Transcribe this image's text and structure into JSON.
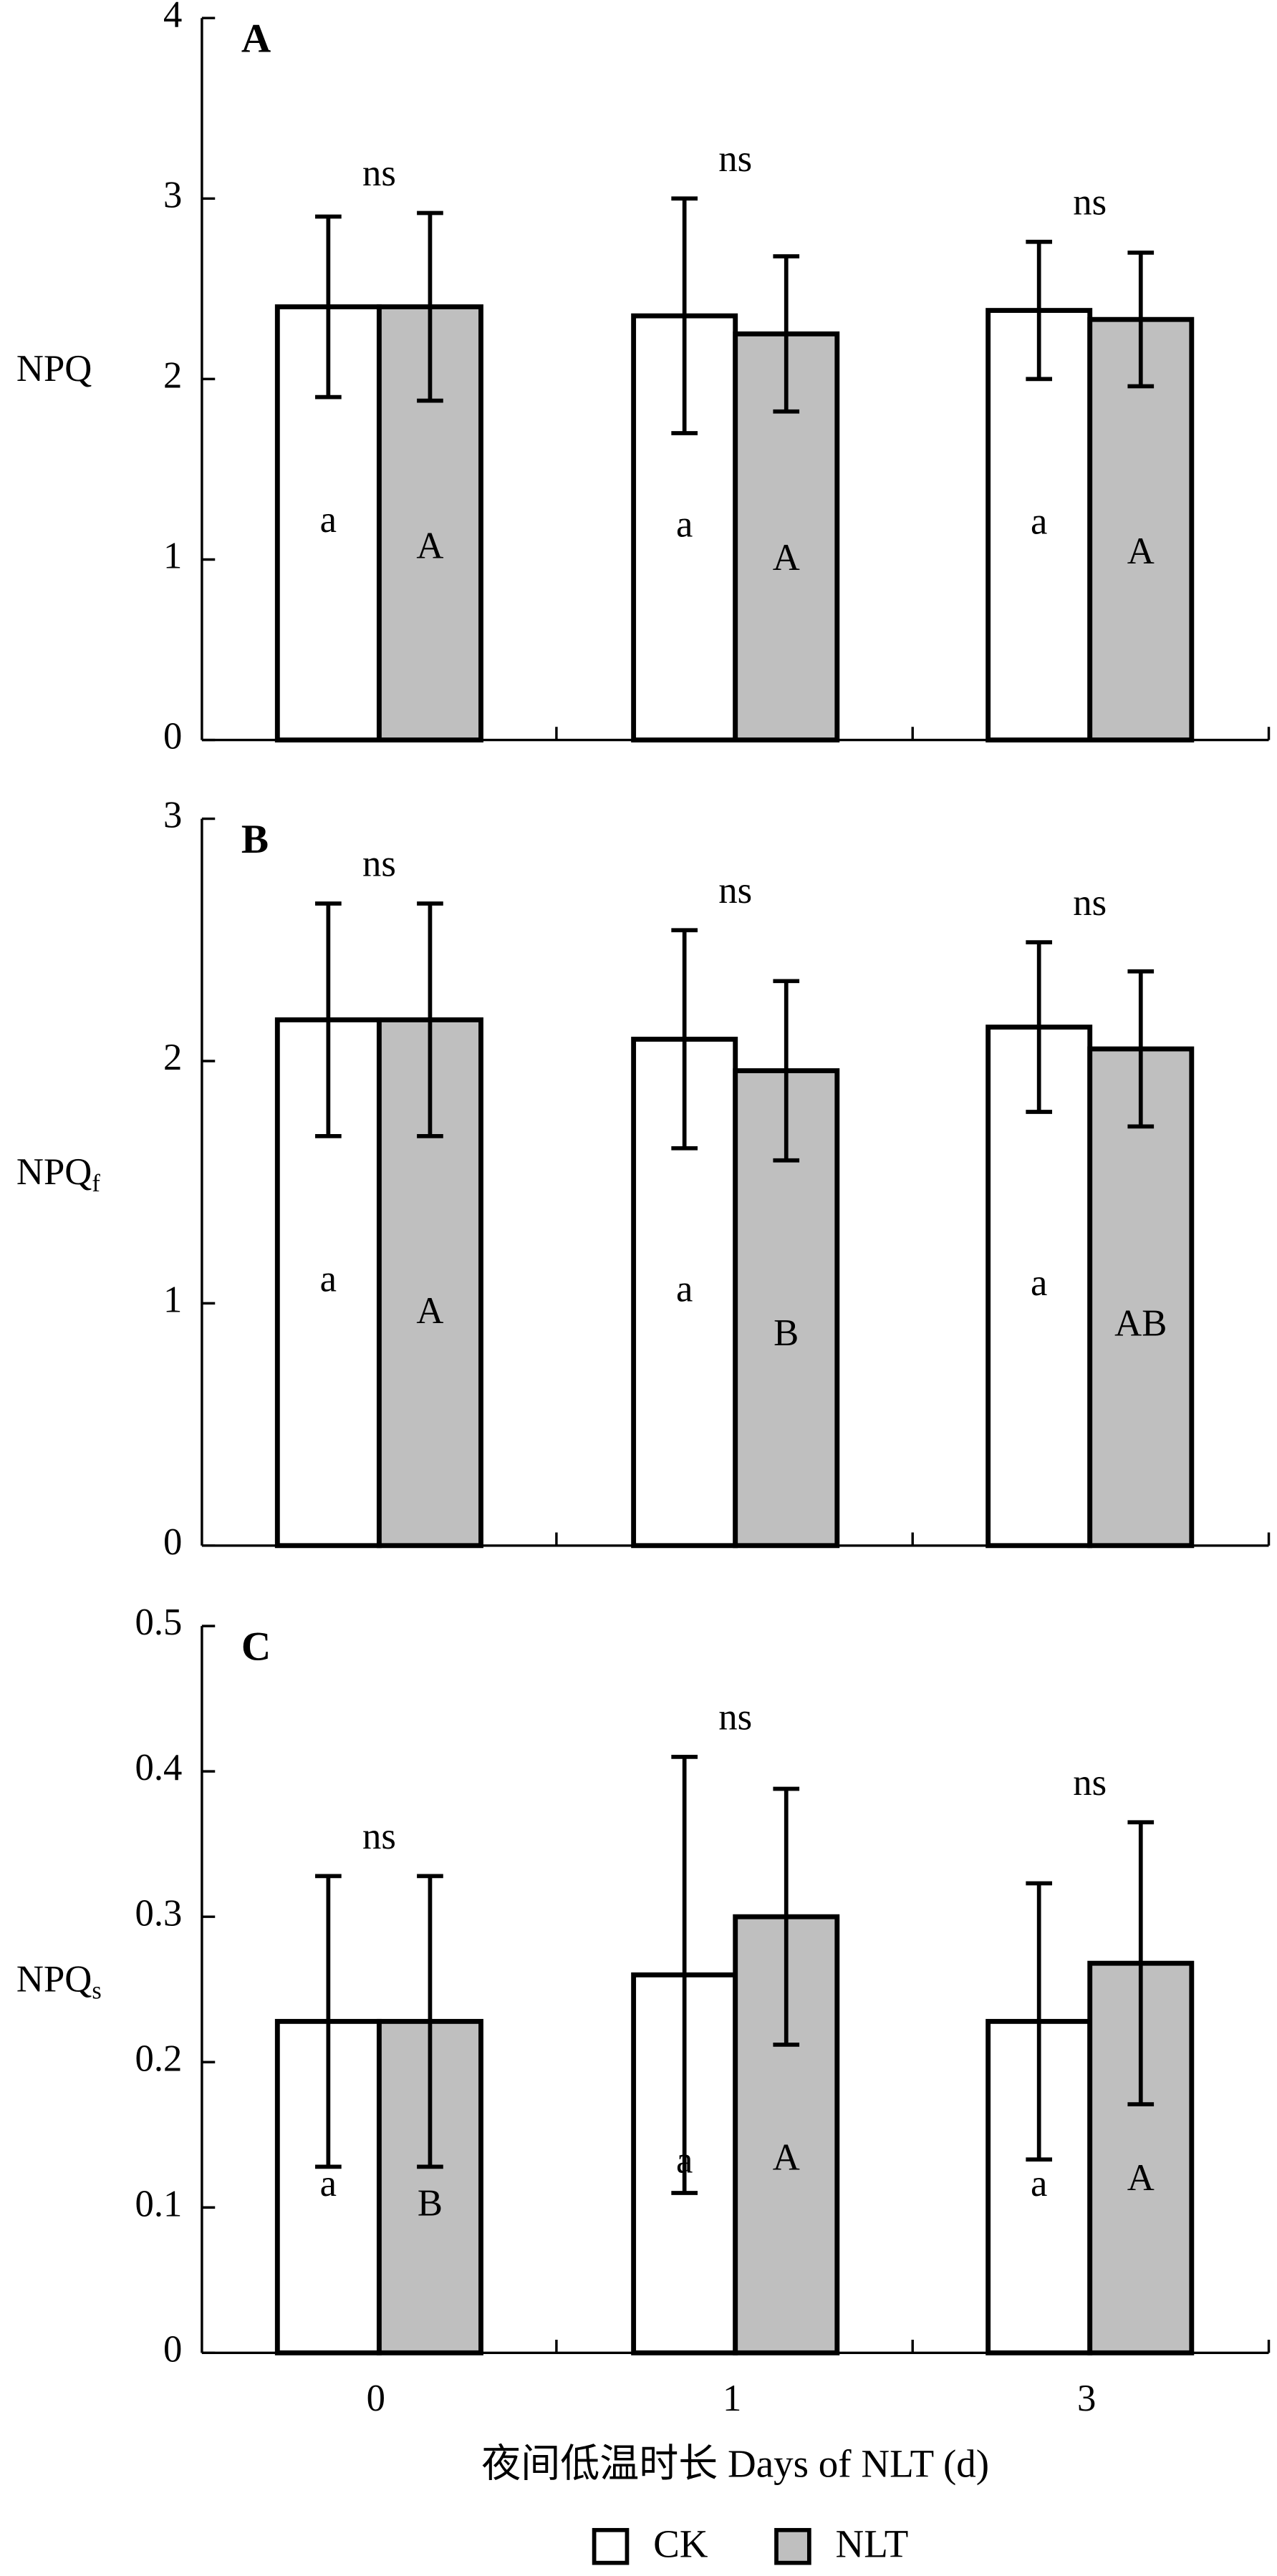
{
  "chart_data": [
    {
      "type": "bar",
      "panel": "A",
      "y_label": "NPQ",
      "ylim": [
        0,
        4
      ],
      "yticks": [
        0,
        1,
        2,
        3,
        4
      ],
      "annotations": [
        "ns",
        "ns",
        "ns"
      ],
      "series": [
        {
          "name": "CK",
          "color": "#ffffff",
          "values": [
            2.4,
            2.35,
            2.38
          ],
          "errors": [
            0.5,
            0.65,
            0.38
          ],
          "letters": [
            "a",
            "a",
            "a"
          ]
        },
        {
          "name": "NLT",
          "color": "#bfbfbf",
          "values": [
            2.4,
            2.25,
            2.33
          ],
          "errors": [
            0.52,
            0.43,
            0.37
          ],
          "letters": [
            "A",
            "A",
            "A"
          ]
        }
      ]
    },
    {
      "type": "bar",
      "panel": "B",
      "y_label": "NPQ",
      "y_label_sub": "f",
      "ylim": [
        0,
        3
      ],
      "yticks": [
        0,
        1,
        2,
        3
      ],
      "annotations": [
        "ns",
        "ns",
        "ns"
      ],
      "series": [
        {
          "name": "CK",
          "color": "#ffffff",
          "values": [
            2.17,
            2.09,
            2.14
          ],
          "errors": [
            0.48,
            0.45,
            0.35
          ],
          "letters": [
            "a",
            "a",
            "a"
          ]
        },
        {
          "name": "NLT",
          "color": "#bfbfbf",
          "values": [
            2.17,
            1.96,
            2.05
          ],
          "errors": [
            0.48,
            0.37,
            0.32
          ],
          "letters": [
            "A",
            "B",
            "AB"
          ]
        }
      ]
    },
    {
      "type": "bar",
      "panel": "C",
      "y_label": "NPQ",
      "y_label_sub": "s",
      "ylim": [
        0,
        0.5
      ],
      "yticks": [
        0,
        0.1,
        0.2,
        0.3,
        0.4,
        0.5
      ],
      "categories": [
        "0",
        "1",
        "3"
      ],
      "x_label": "夜间低温时长 Days of NLT (d)",
      "annotations": [
        "ns",
        "ns",
        "ns"
      ],
      "series": [
        {
          "name": "CK",
          "color": "#ffffff",
          "values": [
            0.228,
            0.26,
            0.228
          ],
          "errors": [
            0.1,
            0.15,
            0.095
          ],
          "letters": [
            "a",
            "a",
            "a"
          ]
        },
        {
          "name": "NLT",
          "color": "#bfbfbf",
          "values": [
            0.228,
            0.3,
            0.268
          ],
          "errors": [
            0.1,
            0.088,
            0.097
          ],
          "letters": [
            "B",
            "A",
            "A"
          ]
        }
      ]
    }
  ]
}
